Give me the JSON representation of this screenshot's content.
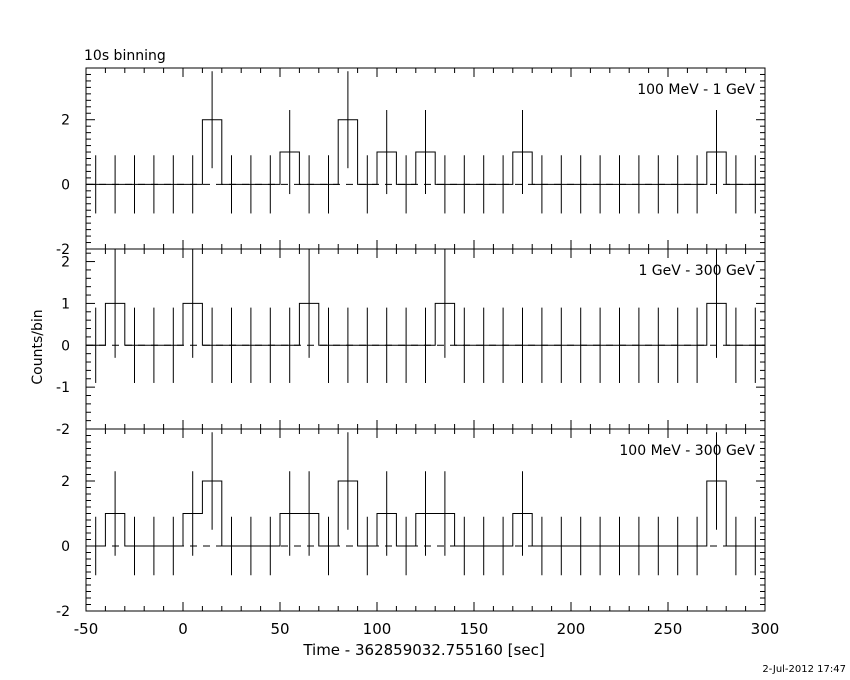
{
  "chart_data": {
    "type": "line",
    "title": "10s binning",
    "xlabel": "Time - 362859032.755160 [sec]",
    "ylabel": "Counts/bin",
    "footer": "2-Jul-2012 17:47",
    "xlim": [
      -50,
      300
    ],
    "x_ticks": [
      -50,
      0,
      50,
      100,
      150,
      200,
      250,
      300
    ],
    "bin_width": 10,
    "panels": [
      {
        "label": "100 MeV - 1 GeV",
        "ylim": [
          -2,
          3.6
        ],
        "y_ticks": [
          -2,
          0,
          2
        ],
        "x": [
          -45,
          -35,
          -25,
          -15,
          -5,
          5,
          15,
          25,
          35,
          45,
          55,
          65,
          75,
          85,
          95,
          105,
          115,
          125,
          135,
          145,
          155,
          165,
          175,
          185,
          195,
          205,
          215,
          225,
          235,
          245,
          255,
          265,
          275,
          285,
          295
        ],
        "counts": [
          0,
          0,
          0,
          0,
          0,
          0,
          2,
          0,
          0,
          0,
          1,
          0,
          0,
          2,
          0,
          1,
          0,
          1,
          0,
          0,
          0,
          0,
          1,
          0,
          0,
          0,
          0,
          0,
          0,
          0,
          0,
          0,
          1,
          0,
          0
        ],
        "errors": [
          0.9,
          0.9,
          0.9,
          0.9,
          0.9,
          0.9,
          1.5,
          0.9,
          0.9,
          0.9,
          1.3,
          0.9,
          0.9,
          1.5,
          0.9,
          1.3,
          0.9,
          1.3,
          0.9,
          0.9,
          0.9,
          0.9,
          1.3,
          0.9,
          0.9,
          0.9,
          0.9,
          0.9,
          0.9,
          0.9,
          0.9,
          0.9,
          1.3,
          0.9,
          0.9
        ]
      },
      {
        "label": "1 GeV - 300 GeV",
        "ylim": [
          -2,
          2.3
        ],
        "y_ticks": [
          -2,
          -1,
          0,
          1,
          2
        ],
        "x": [
          -45,
          -35,
          -25,
          -15,
          -5,
          5,
          15,
          25,
          35,
          45,
          55,
          65,
          75,
          85,
          95,
          105,
          115,
          125,
          135,
          145,
          155,
          165,
          175,
          185,
          195,
          205,
          215,
          225,
          235,
          245,
          255,
          265,
          275,
          285,
          295
        ],
        "counts": [
          0,
          1,
          0,
          0,
          0,
          1,
          0,
          0,
          0,
          0,
          0,
          1,
          0,
          0,
          0,
          0,
          0,
          0,
          1,
          0,
          0,
          0,
          0,
          0,
          0,
          0,
          0,
          0,
          0,
          0,
          0,
          0,
          1,
          0,
          0
        ],
        "errors": [
          0.9,
          1.3,
          0.9,
          0.9,
          0.9,
          1.3,
          0.9,
          0.9,
          0.9,
          0.9,
          0.9,
          1.3,
          0.9,
          0.9,
          0.9,
          0.9,
          0.9,
          0.9,
          1.3,
          0.9,
          0.9,
          0.9,
          0.9,
          0.9,
          0.9,
          0.9,
          0.9,
          0.9,
          0.9,
          0.9,
          0.9,
          0.9,
          1.3,
          0.9,
          0.9
        ]
      },
      {
        "label": "100 MeV - 300 GeV",
        "ylim": [
          -2,
          3.6
        ],
        "y_ticks": [
          -2,
          0,
          2
        ],
        "x": [
          -45,
          -35,
          -25,
          -15,
          -5,
          5,
          15,
          25,
          35,
          45,
          55,
          65,
          75,
          85,
          95,
          105,
          115,
          125,
          135,
          145,
          155,
          165,
          175,
          185,
          195,
          205,
          215,
          225,
          235,
          245,
          255,
          265,
          275,
          285,
          295
        ],
        "counts": [
          0,
          1,
          0,
          0,
          0,
          1,
          2,
          0,
          0,
          0,
          1,
          1,
          0,
          2,
          0,
          1,
          0,
          1,
          1,
          0,
          0,
          0,
          1,
          0,
          0,
          0,
          0,
          0,
          0,
          0,
          0,
          0,
          2,
          0,
          0
        ],
        "errors": [
          0.9,
          1.3,
          0.9,
          0.9,
          0.9,
          1.3,
          1.5,
          0.9,
          0.9,
          0.9,
          1.3,
          1.3,
          0.9,
          1.5,
          0.9,
          1.3,
          0.9,
          1.3,
          1.3,
          0.9,
          0.9,
          0.9,
          1.3,
          0.9,
          0.9,
          0.9,
          0.9,
          0.9,
          0.9,
          0.9,
          0.9,
          0.9,
          1.5,
          0.9,
          0.9
        ]
      }
    ]
  }
}
